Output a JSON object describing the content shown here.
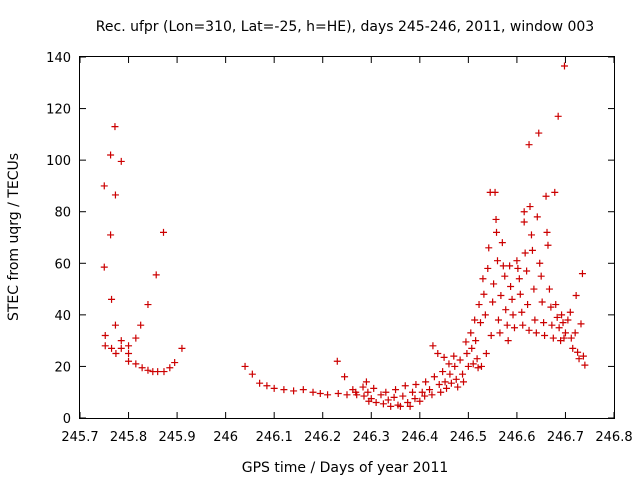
{
  "chart_data": {
    "type": "scatter",
    "title": "Rec. ufpr (Lon=310, Lat=-25, h=HE), days 245-246, 2011, window 003",
    "xlabel": "GPS time / Days of year 2011",
    "ylabel": "STEC from uqrg / TECUs",
    "xlim": [
      245.7,
      246.8
    ],
    "ylim": [
      0,
      140
    ],
    "xticks": [
      "245.7",
      "245.8",
      "245.9",
      "246",
      "246.1",
      "246.2",
      "246.3",
      "246.4",
      "246.5",
      "246.6",
      "246.7",
      "246.8"
    ],
    "yticks": [
      "0",
      "20",
      "40",
      "60",
      "80",
      "100",
      "120",
      "140"
    ],
    "grid": false,
    "marker": "+",
    "series": [
      {
        "color": "#cc0000",
        "points": [
          [
            245.75,
            90
          ],
          [
            245.75,
            58.5
          ],
          [
            245.752,
            32
          ],
          [
            245.752,
            28
          ],
          [
            245.763,
            102
          ],
          [
            245.763,
            71
          ],
          [
            245.765,
            46
          ],
          [
            245.765,
            27
          ],
          [
            245.772,
            113
          ],
          [
            245.773,
            86.5
          ],
          [
            245.773,
            36
          ],
          [
            245.774,
            25
          ],
          [
            245.785,
            99.5
          ],
          [
            245.785,
            30
          ],
          [
            245.785,
            27
          ],
          [
            245.8,
            28
          ],
          [
            245.8,
            25
          ],
          [
            245.8,
            22
          ],
          [
            245.815,
            31
          ],
          [
            245.815,
            21
          ],
          [
            245.825,
            36
          ],
          [
            245.828,
            19.5
          ],
          [
            245.84,
            44
          ],
          [
            245.84,
            18.5
          ],
          [
            245.85,
            18
          ],
          [
            245.857,
            55.5
          ],
          [
            245.86,
            18
          ],
          [
            245.872,
            72
          ],
          [
            245.873,
            18
          ],
          [
            245.885,
            19.5
          ],
          [
            245.895,
            21.5
          ],
          [
            245.91,
            27
          ],
          [
            246.04,
            20
          ],
          [
            246.055,
            17
          ],
          [
            246.07,
            13.5
          ],
          [
            246.085,
            12.5
          ],
          [
            246.1,
            11.5
          ],
          [
            246.12,
            11
          ],
          [
            246.14,
            10.5
          ],
          [
            246.16,
            11
          ],
          [
            246.18,
            10
          ],
          [
            246.195,
            9.5
          ],
          [
            246.21,
            9
          ],
          [
            246.23,
            22
          ],
          [
            246.232,
            9.5
          ],
          [
            246.245,
            16
          ],
          [
            246.25,
            9
          ],
          [
            246.262,
            11
          ],
          [
            246.268,
            10
          ],
          [
            246.27,
            9
          ],
          [
            246.283,
            12
          ],
          [
            246.285,
            8.5
          ],
          [
            246.29,
            14
          ],
          [
            246.293,
            10
          ],
          [
            246.295,
            6.5
          ],
          [
            246.3,
            7.5
          ],
          [
            246.305,
            11.5
          ],
          [
            246.31,
            6
          ],
          [
            246.32,
            9
          ],
          [
            246.325,
            5.5
          ],
          [
            246.33,
            10
          ],
          [
            246.335,
            7
          ],
          [
            246.34,
            4.5
          ],
          [
            246.347,
            8
          ],
          [
            246.35,
            11
          ],
          [
            246.355,
            5
          ],
          [
            246.36,
            4.5
          ],
          [
            246.365,
            8.5
          ],
          [
            246.37,
            12.5
          ],
          [
            246.375,
            6
          ],
          [
            246.38,
            4.5
          ],
          [
            246.385,
            10
          ],
          [
            246.39,
            7.5
          ],
          [
            246.392,
            13
          ],
          [
            246.4,
            6.5
          ],
          [
            246.405,
            10
          ],
          [
            246.41,
            8.5
          ],
          [
            246.412,
            14
          ],
          [
            246.42,
            11
          ],
          [
            246.425,
            9
          ],
          [
            246.427,
            28
          ],
          [
            246.43,
            16
          ],
          [
            246.437,
            25
          ],
          [
            246.44,
            13
          ],
          [
            246.443,
            10
          ],
          [
            246.447,
            18
          ],
          [
            246.45,
            23.5
          ],
          [
            246.452,
            14
          ],
          [
            246.455,
            11.5
          ],
          [
            246.46,
            21
          ],
          [
            246.462,
            17
          ],
          [
            246.465,
            13.5
          ],
          [
            246.47,
            24
          ],
          [
            246.472,
            20
          ],
          [
            246.475,
            15
          ],
          [
            246.478,
            12
          ],
          [
            246.483,
            22.5
          ],
          [
            246.488,
            17
          ],
          [
            246.49,
            14
          ],
          [
            246.495,
            29.5
          ],
          [
            246.497,
            25
          ],
          [
            246.5,
            20
          ],
          [
            246.505,
            33
          ],
          [
            246.507,
            27
          ],
          [
            246.51,
            21
          ],
          [
            246.513,
            38
          ],
          [
            246.515,
            30
          ],
          [
            246.518,
            23
          ],
          [
            246.52,
            19.5
          ],
          [
            246.522,
            44
          ],
          [
            246.525,
            37
          ],
          [
            246.527,
            20
          ],
          [
            246.53,
            54
          ],
          [
            246.532,
            48
          ],
          [
            246.535,
            40
          ],
          [
            246.537,
            25
          ],
          [
            246.54,
            58
          ],
          [
            246.542,
            66
          ],
          [
            246.545,
            87.5
          ],
          [
            246.547,
            32
          ],
          [
            246.55,
            45
          ],
          [
            246.552,
            52
          ],
          [
            246.555,
            87.5
          ],
          [
            246.557,
            77
          ],
          [
            246.558,
            72
          ],
          [
            246.56,
            61
          ],
          [
            246.562,
            38
          ],
          [
            246.565,
            33
          ],
          [
            246.567,
            47.5
          ],
          [
            246.57,
            68
          ],
          [
            246.572,
            59
          ],
          [
            246.575,
            55
          ],
          [
            246.577,
            42
          ],
          [
            246.58,
            36
          ],
          [
            246.582,
            30
          ],
          [
            246.585,
            59
          ],
          [
            246.587,
            51
          ],
          [
            246.59,
            46
          ],
          [
            246.592,
            40
          ],
          [
            246.595,
            35
          ],
          [
            246.6,
            61
          ],
          [
            246.602,
            58
          ],
          [
            246.605,
            54
          ],
          [
            246.607,
            48
          ],
          [
            246.61,
            41
          ],
          [
            246.612,
            36
          ],
          [
            246.615,
            80
          ],
          [
            246.615,
            76
          ],
          [
            246.617,
            64
          ],
          [
            246.62,
            57
          ],
          [
            246.622,
            44
          ],
          [
            246.625,
            34
          ],
          [
            246.625,
            106
          ],
          [
            246.627,
            82
          ],
          [
            246.63,
            71
          ],
          [
            246.632,
            65
          ],
          [
            246.635,
            50
          ],
          [
            246.637,
            38
          ],
          [
            246.64,
            33
          ],
          [
            246.642,
            78
          ],
          [
            246.645,
            110.5
          ],
          [
            246.647,
            60
          ],
          [
            246.65,
            55
          ],
          [
            246.652,
            45
          ],
          [
            246.655,
            37
          ],
          [
            246.657,
            32
          ],
          [
            246.66,
            86
          ],
          [
            246.662,
            72
          ],
          [
            246.664,
            67
          ],
          [
            246.667,
            50
          ],
          [
            246.67,
            43
          ],
          [
            246.672,
            36
          ],
          [
            246.675,
            31
          ],
          [
            246.678,
            87.5
          ],
          [
            246.68,
            44
          ],
          [
            246.683,
            39
          ],
          [
            246.685,
            117
          ],
          [
            246.687,
            35
          ],
          [
            246.69,
            30
          ],
          [
            246.692,
            40
          ],
          [
            246.695,
            37
          ],
          [
            246.697,
            31
          ],
          [
            246.698,
            136.5
          ],
          [
            246.7,
            33
          ],
          [
            246.705,
            38
          ],
          [
            246.71,
            41
          ],
          [
            246.712,
            31
          ],
          [
            246.715,
            27
          ],
          [
            246.72,
            33
          ],
          [
            246.722,
            47.5
          ],
          [
            246.725,
            25.5
          ],
          [
            246.728,
            23
          ],
          [
            246.732,
            36.5
          ],
          [
            246.735,
            56
          ],
          [
            246.737,
            24
          ],
          [
            246.74,
            20.5
          ]
        ]
      }
    ]
  }
}
